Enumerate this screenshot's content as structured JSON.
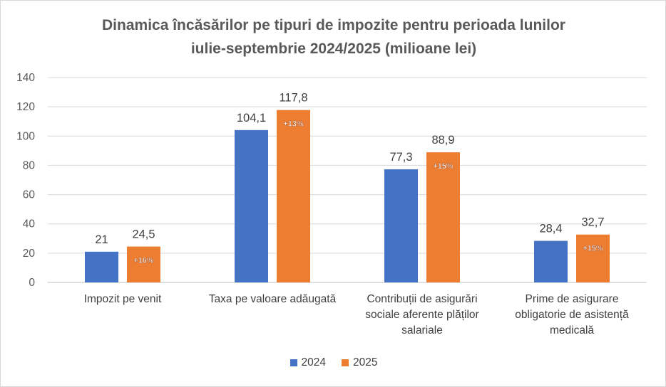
{
  "chart_data": {
    "type": "bar",
    "title": "Dinamica încăsărilor pe tipuri de impozite pentru perioada lunilor iulie-septembrie 2024/2025 (milioane lei)",
    "title_lines": [
      "Dinamica încăsărilor pe tipuri de impozite pentru perioada lunilor",
      "iulie-septembrie 2024/2025 (milioane lei)"
    ],
    "categories": [
      "Impozit pe venit",
      "Taxa pe valoare adăugată",
      "Contribuții de asigurări sociale aferente plăților salariale",
      "Prime de asigurare obligatorie de asistență medicală"
    ],
    "series": [
      {
        "name": "2024",
        "color": "#4472C4",
        "values": [
          21,
          104.1,
          77.3,
          28.4
        ],
        "labels": [
          "21",
          "104,1",
          "77,3",
          "28,4"
        ]
      },
      {
        "name": "2025",
        "color": "#ED7D31",
        "values": [
          24.5,
          117.8,
          88.9,
          32.7
        ],
        "labels": [
          "24,5",
          "117,8",
          "88,9",
          "32,7"
        ],
        "change_labels": [
          "+16%",
          "+13%",
          "+15%",
          "+15%"
        ]
      }
    ],
    "ylim": [
      0,
      140
    ],
    "yticks": [
      "0",
      "20",
      "40",
      "60",
      "80",
      "100",
      "120",
      "140"
    ],
    "grid": true,
    "legend": "bottom",
    "xlabel": "",
    "ylabel": ""
  }
}
